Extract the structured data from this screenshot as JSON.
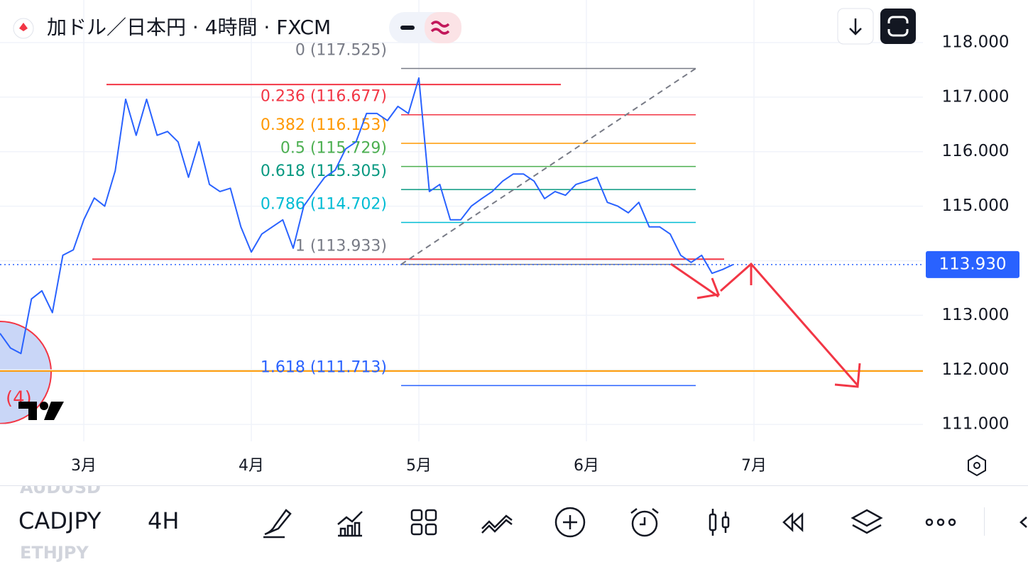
{
  "header": {
    "title": "加ドル／日本円 · 4時間 · FXCM"
  },
  "chart_data": {
    "type": "line",
    "categories": [
      null,
      null,
      null,
      null,
      null,
      null,
      null,
      null,
      "3月",
      null,
      null,
      null,
      null,
      null,
      null,
      null,
      null,
      null,
      null,
      null,
      null,
      null,
      null,
      null,
      "4月",
      null,
      null,
      null,
      null,
      null,
      null,
      null,
      null,
      null,
      null,
      null,
      null,
      null,
      null,
      null,
      "5月",
      null,
      null,
      null,
      null,
      null,
      null,
      null,
      null,
      null,
      null,
      null,
      null,
      null,
      null,
      null,
      "6月",
      null,
      null,
      null,
      null,
      null,
      null,
      null,
      null,
      null,
      null,
      null,
      null,
      null,
      null,
      null,
      "7月"
    ],
    "values": [
      112.67,
      112.4,
      112.3,
      113.3,
      113.45,
      113.05,
      114.1,
      114.2,
      114.75,
      115.15,
      115.0,
      115.65,
      116.96,
      116.3,
      116.96,
      116.3,
      116.37,
      116.18,
      115.53,
      116.18,
      115.4,
      115.27,
      115.33,
      114.62,
      114.16,
      114.49,
      114.62,
      114.75,
      114.23,
      115.0,
      115.27,
      115.53,
      115.66,
      116.05,
      116.18,
      116.7,
      116.7,
      116.57,
      116.83,
      116.7,
      117.35,
      115.27,
      115.4,
      114.75,
      114.75,
      115.0,
      115.14,
      115.27,
      115.46,
      115.59,
      115.59,
      115.46,
      115.14,
      115.27,
      115.2,
      115.4,
      115.46,
      115.53,
      115.07,
      115.0,
      114.88,
      115.07,
      114.62,
      114.62,
      114.49,
      114.1,
      113.97,
      114.1,
      113.77,
      113.84,
      113.93,
      null,
      null
    ],
    "color": "#2962ff",
    "ylim": [
      110.69,
      118.78
    ],
    "yticks": [
      {
        "value": 111,
        "label": "111.000"
      },
      {
        "value": 112,
        "label": "112.000"
      },
      {
        "value": 113,
        "label": "113.000"
      },
      {
        "value": 114,
        "label": "114.000"
      },
      {
        "value": 115,
        "label": "115.000"
      },
      {
        "value": 116,
        "label": "116.000"
      },
      {
        "value": 117,
        "label": "117.000"
      },
      {
        "value": 118,
        "label": "118.000"
      }
    ],
    "grid": true,
    "fib_levels": [
      {
        "label": "0 (117.525)",
        "value": 117.525,
        "color": "#787b86"
      },
      {
        "label": "0.236 (116.677)",
        "value": 116.677,
        "color": "#f23645"
      },
      {
        "label": "0.382 (116.153)",
        "value": 116.153,
        "color": "#ff9800"
      },
      {
        "label": "0.5 (115.729)",
        "value": 115.729,
        "color": "#4caf50"
      },
      {
        "label": "0.618 (115.305)",
        "value": 115.305,
        "color": "#089981"
      },
      {
        "label": "0.786 (114.702)",
        "value": 114.702,
        "color": "#00bcd4"
      },
      {
        "label": "1 (113.933)",
        "value": 113.933,
        "color": "#787b86"
      },
      {
        "label": "1.618 (111.713)",
        "value": 111.713,
        "color": "#2962ff"
      }
    ],
    "lines": [
      {
        "value": 117.23,
        "color": "#f23645"
      },
      {
        "value": 114.03,
        "color": "#f23645"
      },
      {
        "value": 111.98,
        "color": "#ff9800"
      }
    ],
    "last_price": {
      "value": 113.93,
      "label": "113.930"
    },
    "badge": "(4)"
  },
  "toolbar": {
    "symbol": "CADJPY",
    "interval": "4H",
    "watchlist": [
      "AUDUSD",
      "ETHJPY"
    ]
  }
}
